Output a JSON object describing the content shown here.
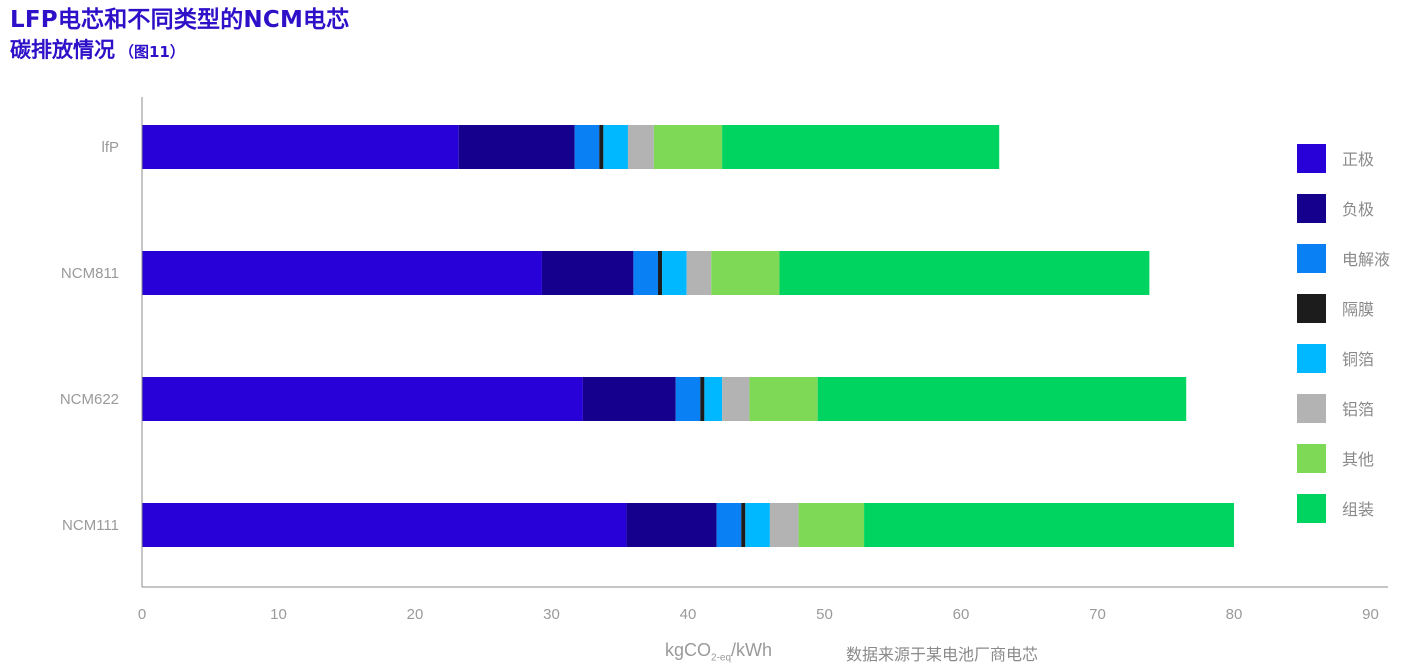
{
  "title": {
    "line1": "LFP电芯和不同类型的NCM电芯",
    "line2": "碳排放情况",
    "figure_ref": "（图11）"
  },
  "chart_data": {
    "type": "bar",
    "orientation": "horizontal",
    "stacked": true,
    "categories": [
      "lfP",
      "NCM811",
      "NCM622",
      "NCM111"
    ],
    "series": [
      {
        "name": "正极",
        "color": "#2800d8",
        "values": [
          23.2,
          29.3,
          32.3,
          35.5
        ]
      },
      {
        "name": "负极",
        "color": "#14008c",
        "values": [
          8.5,
          6.7,
          6.8,
          6.6
        ]
      },
      {
        "name": "电解液",
        "color": "#0a80f5",
        "values": [
          1.8,
          1.8,
          1.8,
          1.8
        ]
      },
      {
        "name": "隔膜",
        "color": "#1c1c1c",
        "values": [
          0.3,
          0.3,
          0.3,
          0.3
        ]
      },
      {
        "name": "铜箔",
        "color": "#00b8ff",
        "values": [
          1.8,
          1.8,
          1.3,
          1.8
        ]
      },
      {
        "name": "铝箔",
        "color": "#b3b3b3",
        "values": [
          1.9,
          1.8,
          2.0,
          2.1
        ]
      },
      {
        "name": "其他",
        "color": "#7ed957",
        "values": [
          5.0,
          5.0,
          5.0,
          4.8
        ]
      },
      {
        "name": "组装",
        "color": "#00d460",
        "values": [
          20.3,
          27.1,
          27.0,
          27.1
        ]
      }
    ],
    "xlim": [
      0,
      90
    ],
    "xticks": [
      "0",
      "10",
      "20",
      "30",
      "40",
      "50",
      "60",
      "70",
      "80",
      "90"
    ],
    "xlabel": {
      "pre": "kgCO",
      "sub": "2-eq",
      "post": "/kWh"
    },
    "legend_position": "right",
    "grid": false
  },
  "source_note": "数据来源于某电池厂商电芯"
}
